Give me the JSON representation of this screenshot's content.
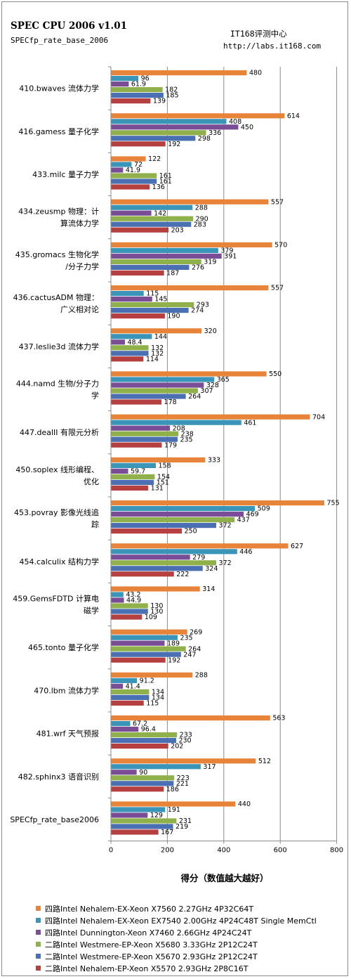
{
  "header": {
    "title": "SPEC CPU 2006 v1.01",
    "subtitle": "SPECfp_rate_base_2006",
    "source_line1": "IT168评测中心",
    "source_line2": "http://labs.it168.com"
  },
  "chart_data": {
    "type": "bar",
    "orientation": "horizontal",
    "title": "",
    "xlabel": "得分（数值越大越好）",
    "ylabel": "",
    "xlim": [
      0,
      800
    ],
    "x_ticks": [
      0,
      200,
      400,
      600,
      800
    ],
    "grid": true,
    "legend_position": "bottom",
    "categories": [
      [
        "410.bwaves 流体力学"
      ],
      [
        "416.gamess 量子化学"
      ],
      [
        "433.milc 量子力学"
      ],
      [
        "434.zeusmp 物理：计",
        "算流体力学"
      ],
      [
        "435.gromacs 生物化学",
        "/分子力学"
      ],
      [
        "436.cactusADM 物理：",
        "广义相对论"
      ],
      [
        "437.leslie3d 流体力学"
      ],
      [
        "444.namd 生物/分子力",
        "学"
      ],
      [
        "447.dealII 有限元分析"
      ],
      [
        "450.soplex 线形编程、",
        "优化"
      ],
      [
        "453.povray 影像光线追",
        "踪"
      ],
      [
        "454.calculix 结构力学"
      ],
      [
        "459.GemsFDTD 计算电",
        "磁学"
      ],
      [
        "465.tonto 量子化学"
      ],
      [
        "470.lbm 流体力学"
      ],
      [
        "481.wrf 天气预报"
      ],
      [
        "482.sphinx3 语音识别"
      ],
      [
        "SPECfp_rate_base2006"
      ]
    ],
    "series": [
      {
        "name": "四路Intel Nehalem-EX-Xeon X7560 2.27GHz 4P32C64T",
        "color": "#e8843a",
        "values": [
          480,
          614,
          122,
          557,
          570,
          557,
          320,
          550,
          704,
          333,
          755,
          627,
          314,
          269,
          288,
          563,
          512,
          440
        ]
      },
      {
        "name": "四路Intel Nehalem-EX-Xeon EX7540 2.00GHz 4P24C48T Single MemCtl",
        "color": "#3b95b8",
        "values": [
          96,
          408,
          72,
          288,
          379,
          115,
          144,
          365,
          461,
          158,
          509,
          446,
          43.2,
          235,
          91.2,
          67.2,
          317,
          191
        ]
      },
      {
        "name": "四路Intel Dunnington-Xeon X7460 2.66GHz 4P24C24T",
        "color": "#7b4d97",
        "values": [
          61.9,
          450,
          41.9,
          142,
          391,
          145,
          48.4,
          328,
          208,
          59.7,
          469,
          279,
          44.9,
          189,
          41.4,
          96.4,
          90,
          129
        ]
      },
      {
        "name": "二路Intel Westmere-EP-Xeon X5680 3.33GHz 2P12C24T",
        "color": "#8fb04a",
        "values": [
          182,
          336,
          161,
          290,
          319,
          293,
          132,
          307,
          238,
          154,
          437,
          372,
          130,
          264,
          134,
          233,
          223,
          231
        ]
      },
      {
        "name": "二路Intel Westmere-EP-Xeon X5670 2.93GHz 2P12C24T",
        "color": "#4a6fb2",
        "values": [
          185,
          298,
          161,
          283,
          276,
          274,
          132,
          264,
          235,
          151,
          372,
          324,
          130,
          247,
          134,
          230,
          221,
          219
        ]
      },
      {
        "name": "二路Intel Nehalem-EP-Xeon X5570 2.93GHz 2P8C16T",
        "color": "#b5403f",
        "values": [
          139,
          192,
          136,
          203,
          187,
          190,
          114,
          178,
          179,
          131,
          250,
          222,
          109,
          192,
          115,
          202,
          186,
          167
        ]
      }
    ]
  }
}
